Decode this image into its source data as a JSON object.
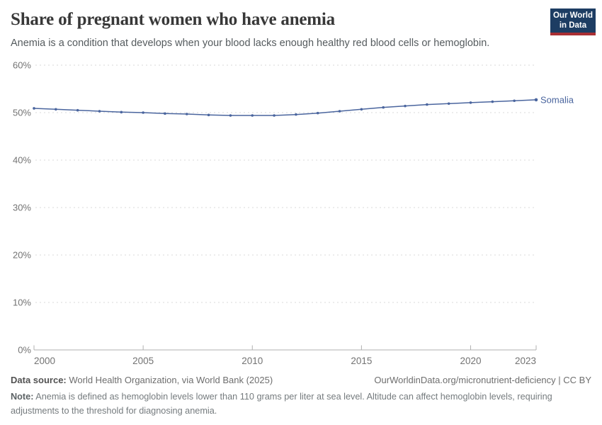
{
  "header": {
    "title": "Share of pregnant women who have anemia",
    "subtitle": "Anemia is a condition that develops when your blood lacks enough healthy red blood cells or hemoglobin.",
    "logo": {
      "line1": "Our World",
      "line2": "in Data"
    }
  },
  "chart_data": {
    "type": "line",
    "title": "Share of pregnant women who have anemia",
    "xlabel": "",
    "ylabel": "",
    "xlim": [
      2000,
      2023
    ],
    "ylim": [
      0,
      60
    ],
    "x_ticks": [
      2000,
      2005,
      2010,
      2015,
      2020,
      2023
    ],
    "y_ticks": [
      0,
      10,
      20,
      30,
      40,
      50,
      60
    ],
    "y_tick_suffix": "%",
    "grid": "horizontal-dashed",
    "legend_position": "end-of-line-label",
    "series": [
      {
        "name": "Somalia",
        "x": [
          2000,
          2001,
          2002,
          2003,
          2004,
          2005,
          2006,
          2007,
          2008,
          2009,
          2010,
          2011,
          2012,
          2013,
          2014,
          2015,
          2016,
          2017,
          2018,
          2019,
          2020,
          2021,
          2022,
          2023
        ],
        "values": [
          50.9,
          50.7,
          50.5,
          50.3,
          50.1,
          50.0,
          49.8,
          49.7,
          49.5,
          49.4,
          49.4,
          49.4,
          49.6,
          49.9,
          50.3,
          50.7,
          51.1,
          51.4,
          51.7,
          51.9,
          52.1,
          52.3,
          52.5,
          52.7
        ]
      }
    ]
  },
  "colors": {
    "series_blue": "#4a659e",
    "gridline": "#dadada",
    "axis_line": "#b0b0b0",
    "tick_label": "#737373",
    "logo_bg": "#1d3d63",
    "logo_red": "#a92f33"
  },
  "footer": {
    "datasource_label": "Data source:",
    "datasource_text": " World Health Organization, via World Bank (2025)",
    "link_text": "OurWorldinData.org/micronutrient-deficiency | CC BY",
    "note_label": "Note:",
    "note_text": " Anemia is defined as hemoglobin levels lower than 110 grams per liter at sea level. Altitude can affect hemoglobin levels, requiring adjustments to the threshold for diagnosing anemia."
  }
}
